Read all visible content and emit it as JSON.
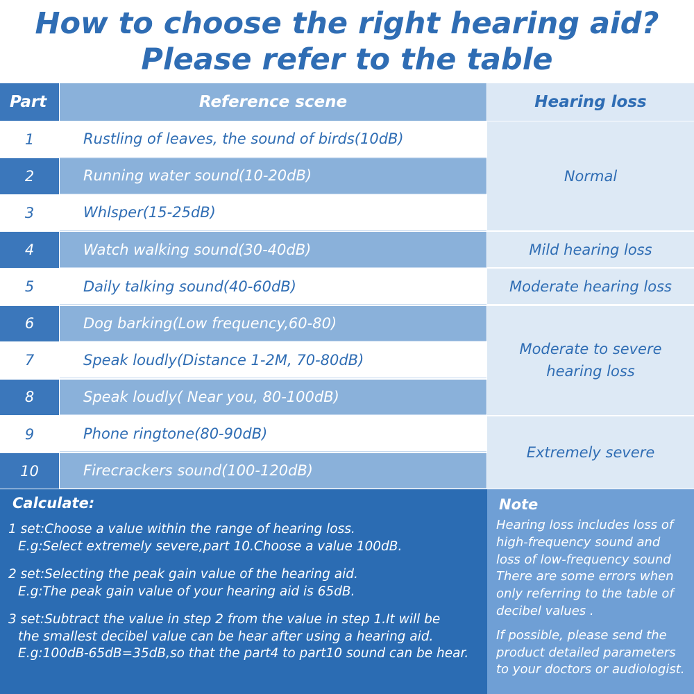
{
  "header": {
    "title_lines": [
      "How to choose the right hearing aid?",
      "Please refer to the table"
    ]
  },
  "table": {
    "columns": [
      "Part",
      "Reference scene",
      "Hearing loss"
    ],
    "rows": [
      [
        "1",
        "Rustling of leaves, the sound of birds(10dB)"
      ],
      [
        "2",
        "Running water sound(10-20dB)"
      ],
      [
        "3",
        "Whlsper(15-25dB)"
      ],
      [
        "4",
        "Watch walking sound(30-40dB)"
      ],
      [
        "5",
        "Daily talking sound(40-60dB)"
      ],
      [
        "6",
        "Dog barking(Low frequency,60-80)"
      ],
      [
        "7",
        "Speak loudly(Distance 1-2M, 70-80dB)"
      ],
      [
        "8",
        "Speak loudly( Near you, 80-100dB)"
      ],
      [
        "9",
        "Phone ringtone(80-90dB)"
      ],
      [
        "10",
        "Firecrackers sound(100-120dB)"
      ]
    ],
    "hearing_loss": [
      {
        "lines": [
          "Normal"
        ],
        "rows": [
          1,
          3
        ]
      },
      {
        "lines": [
          "Mild hearing loss"
        ],
        "rows": [
          4,
          4
        ]
      },
      {
        "lines": [
          "Moderate hearing loss"
        ],
        "rows": [
          5,
          5
        ]
      },
      {
        "lines": [
          "Moderate to severe",
          "hearing loss"
        ],
        "rows": [
          6,
          8
        ]
      },
      {
        "lines": [
          "Extremely severe"
        ],
        "rows": [
          9,
          10
        ]
      }
    ]
  },
  "calculate": {
    "title": "Calculate:",
    "steps": [
      [
        "1 set:Choose a value within the range of hearing loss.",
        "E.g:Select extremely severe,part 10.Choose a value 100dB."
      ],
      [
        "2 set:Selecting the peak gain value of the hearing aid.",
        "E.g:The peak gain value of your hearing aid is 65dB."
      ],
      [
        "3 set:Subtract the value in step 2 from the value in step 1.It will be",
        "the smallest decibel value can be hear after using a hearing aid.",
        "E.g:100dB-65dB=35dB,so that the part4 to part10 sound can be hear."
      ]
    ]
  },
  "note": {
    "title": "Note",
    "paragraphs": [
      [
        "Hearing loss includes loss of",
        "high-frequency sound and",
        "loss of low-frequency sound",
        "There are some errors when",
        "only referring to the table of",
        "decibel values ."
      ],
      [
        "If possible, please send the",
        "product detailed parameters",
        "to your doctors or audiologist."
      ]
    ]
  }
}
